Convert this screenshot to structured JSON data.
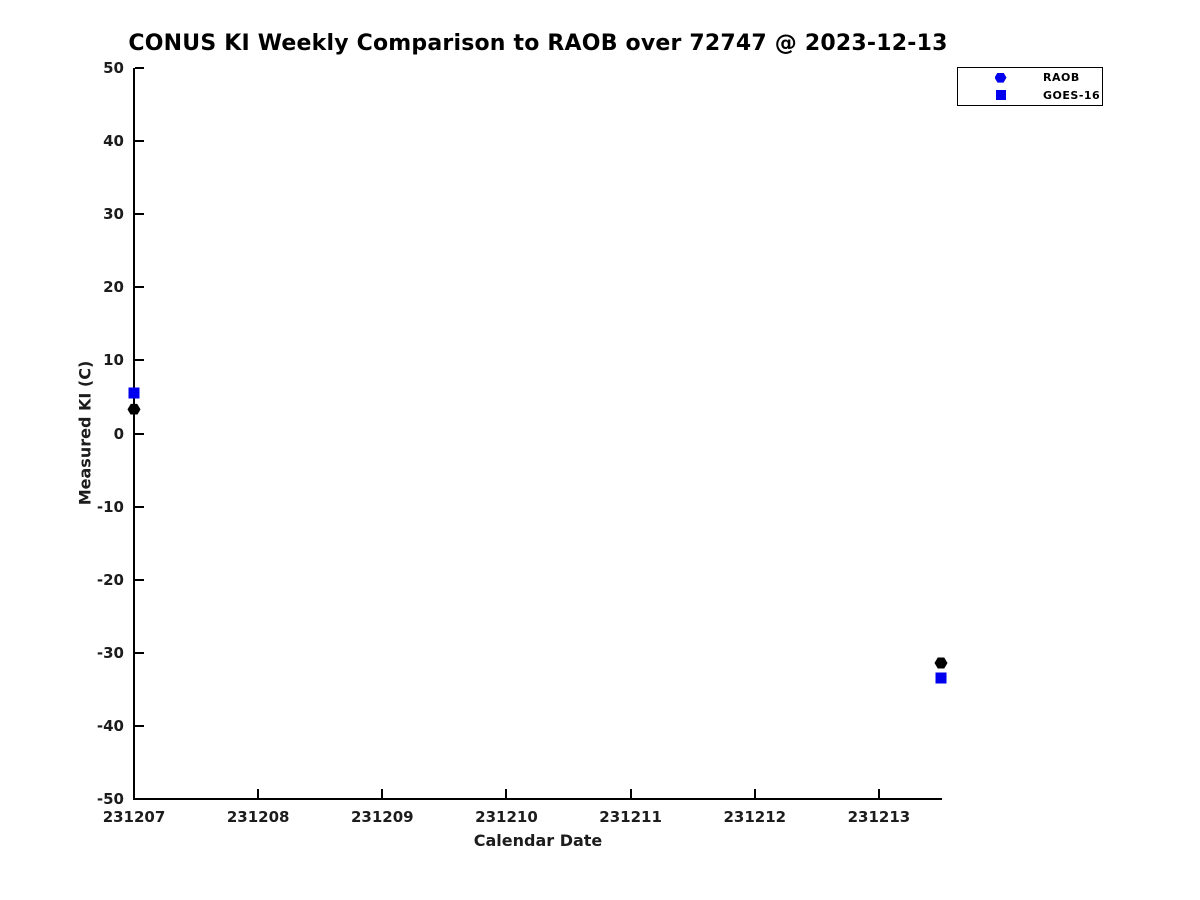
{
  "colors": {
    "background": "#FFFFFF",
    "axis": "#000000",
    "tick_label": "#1C1C1C",
    "series_blue": "#0000EE",
    "series_black": "#000000"
  },
  "chart_data": {
    "type": "scatter",
    "title": "CONUS KI Weekly Comparison to RAOB over 72747 @ 2023-12-13",
    "xlabel": "Calendar Date",
    "ylabel": "Measured KI (C)",
    "xlim": [
      231207,
      231213.5
    ],
    "ylim": [
      -50,
      50
    ],
    "grid": false,
    "x_ticks": [
      "231207",
      "231208",
      "231209",
      "231210",
      "231211",
      "231212",
      "231213"
    ],
    "y_ticks": [
      "50",
      "40",
      "30",
      "20",
      "10",
      "0",
      "-10",
      "-20",
      "-30",
      "-40",
      "-50"
    ],
    "legend_position": "top-right",
    "series": [
      {
        "name": "RAOB",
        "marker": "hexagon",
        "color": "#000000",
        "legend_color": "#0000EE",
        "points": [
          {
            "x": 231207.0,
            "y": 3.3
          },
          {
            "x": 231213.5,
            "y": -31.4
          }
        ]
      },
      {
        "name": "GOES-16",
        "marker": "square",
        "color": "#0000EE",
        "legend_color": "#0000EE",
        "points": [
          {
            "x": 231207.0,
            "y": 5.6
          },
          {
            "x": 231213.5,
            "y": -33.5
          }
        ]
      }
    ]
  }
}
